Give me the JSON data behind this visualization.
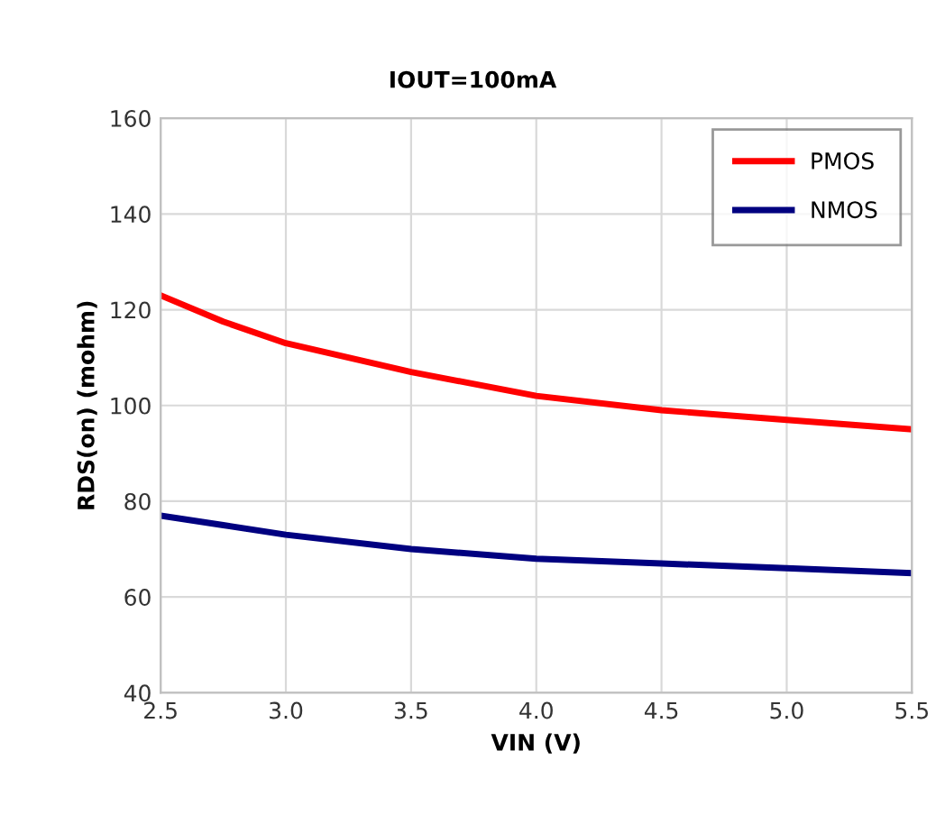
{
  "chart_data": {
    "type": "line",
    "title": "IOUT=100mA",
    "xlabel": "VIN (V)",
    "ylabel": "RDS(on) (mohm)",
    "x": [
      2.5,
      2.75,
      3.0,
      3.5,
      4.0,
      4.5,
      5.0,
      5.5
    ],
    "series": [
      {
        "name": "PMOS",
        "color": "#ff0000",
        "values": [
          123,
          117.5,
          113,
          107,
          102,
          99,
          97,
          95
        ]
      },
      {
        "name": "NMOS",
        "color": "#000080",
        "values": [
          77,
          75,
          73,
          70,
          68,
          67,
          66,
          65
        ]
      }
    ],
    "xlim": [
      2.5,
      5.5
    ],
    "xticks": [
      {
        "value": 2.5,
        "label": "2.5"
      },
      {
        "value": 3.0,
        "label": "3.0"
      },
      {
        "value": 3.5,
        "label": "3.5"
      },
      {
        "value": 4.0,
        "label": "4.0"
      },
      {
        "value": 4.5,
        "label": "4.5"
      },
      {
        "value": 5.0,
        "label": "5.0"
      },
      {
        "value": 5.5,
        "label": "5.5"
      }
    ],
    "ylim": [
      40,
      160
    ],
    "yticks": [
      40,
      60,
      80,
      100,
      120,
      140,
      160
    ],
    "grid": true,
    "legend": "top right",
    "marker": "none",
    "line_style": "solid"
  }
}
